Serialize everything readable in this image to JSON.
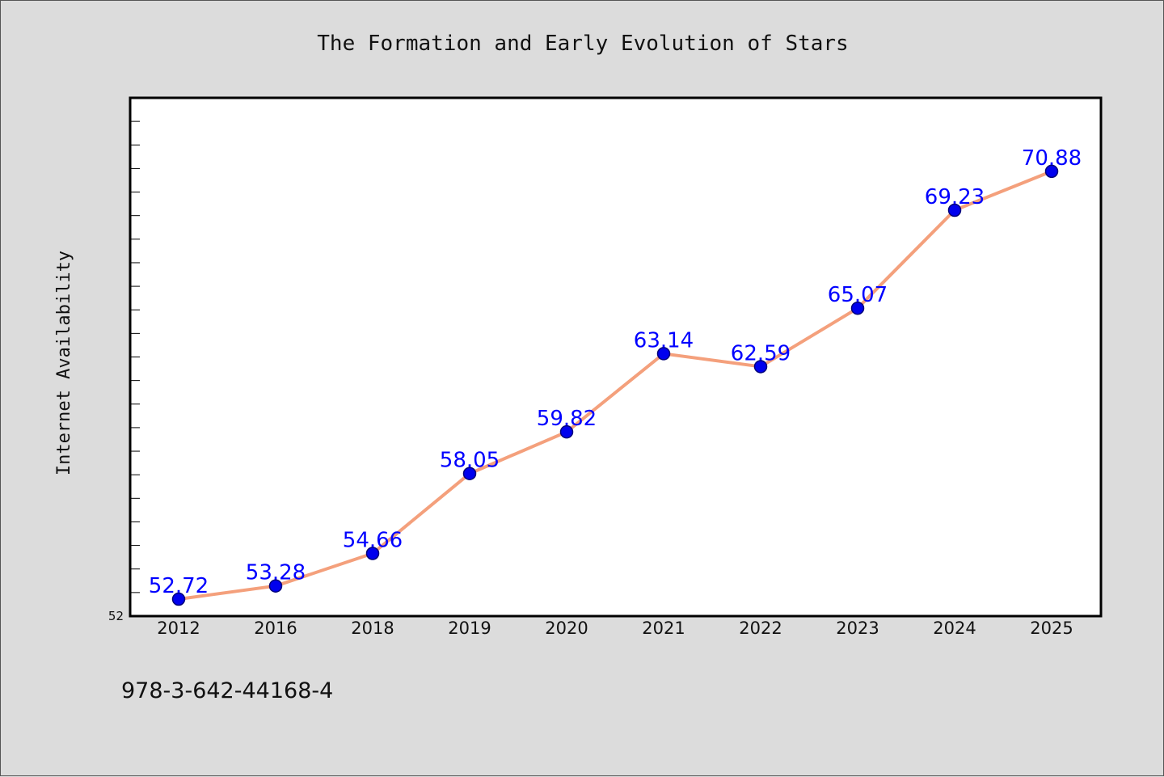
{
  "footer": {
    "code": "978-3-642-44168-4"
  },
  "chart_data": {
    "type": "line",
    "title": "The Formation and Early Evolution of Stars",
    "xlabel": "",
    "ylabel": "Internet Availability",
    "categories": [
      "2012",
      "2016",
      "2018",
      "2019",
      "2020",
      "2021",
      "2022",
      "2023",
      "2024",
      "2025"
    ],
    "series": [
      {
        "values": [
          52.72,
          53.28,
          54.66,
          58.05,
          59.82,
          63.14,
          62.59,
          65.07,
          69.23,
          70.88
        ],
        "labels": [
          "52.72",
          "53.28",
          "54.66",
          "58.05",
          "59.82",
          "63.14",
          "62.59",
          "65.07",
          "69.23",
          "70.88"
        ]
      }
    ],
    "ylim": [
      52,
      74
    ],
    "y_tick_labels": [
      "52"
    ],
    "grid": false,
    "legend": "none",
    "colors": {
      "line": "#f4a07c",
      "marker": "#0000ee",
      "marker_edge": "#00007a",
      "data_label": "#0000ff",
      "plot_background": "#ffffff",
      "page_background": "#dcdcdc"
    }
  }
}
